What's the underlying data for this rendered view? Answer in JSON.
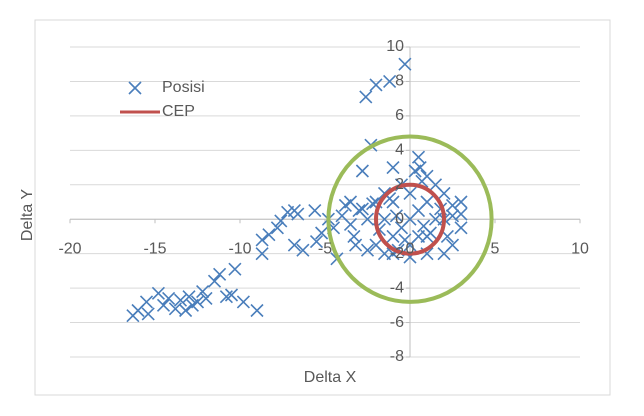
{
  "chart_data": {
    "type": "scatter",
    "xlabel": "Delta X",
    "ylabel": "Delta Y",
    "xlim": [
      -20,
      10
    ],
    "xticks": [
      -20,
      -15,
      -10,
      -5,
      0,
      5,
      10
    ],
    "ylim": [
      -8,
      10
    ],
    "yticks": [
      -8,
      -6,
      -4,
      -2,
      0,
      2,
      4,
      6,
      8,
      10
    ],
    "grid": true,
    "legend": "top-left",
    "series": [
      {
        "name": "Posisi",
        "color": "#4a7ebb",
        "x": [
          -16.3,
          -16,
          -15.5,
          -15.4,
          -14.8,
          -14.5,
          -14.2,
          -13.8,
          -13.5,
          -13.2,
          -13,
          -12.8,
          -12.5,
          -12.2,
          -12,
          -11.5,
          -11.2,
          -10.8,
          -10.5,
          -10.3,
          -9.8,
          -9,
          -8.7,
          -8.7,
          -8.3,
          -7.8,
          -7.6,
          -7.2,
          -6.8,
          -6.6,
          -6.8,
          -6.3,
          -5.6,
          -5.5,
          -5.2,
          -4.8,
          -4.5,
          -4.3,
          -4,
          -3.8,
          -3.5,
          -3.3,
          -3,
          -2.8,
          -2.6,
          -2.3,
          -2,
          -1.2,
          -0.3,
          -2.5,
          -2,
          -1.5,
          -1,
          0.5,
          0.6,
          1,
          1.5,
          2,
          2.5,
          3,
          3,
          2.5,
          2,
          1,
          0,
          -1,
          -1.5,
          -2,
          -2.5,
          0,
          0.5,
          -0.5,
          1,
          -1,
          1,
          -1,
          0,
          0,
          1.5,
          -1.5,
          2,
          -0.5,
          0.5,
          2.5,
          3,
          -3.5,
          -3.2,
          -2.8,
          -0.8,
          0.8,
          1.8,
          -1.8,
          0.3,
          -0.3,
          1.2,
          -1.2,
          2.2,
          -2.2,
          0.7,
          -0.7
        ],
        "values": [
          -5.6,
          -5.3,
          -4.8,
          -5.5,
          -4.3,
          -5,
          -4.6,
          -5.2,
          -4.7,
          -5.3,
          -4.5,
          -5,
          -4.8,
          -4.2,
          -4.6,
          -3.6,
          -3.2,
          -4.5,
          -4.4,
          -2.9,
          -4.8,
          -5.3,
          -2,
          -1.2,
          -0.9,
          -0.5,
          -0.1,
          0.4,
          0.5,
          0.3,
          -1.5,
          -1.8,
          0.5,
          -1.3,
          -0.8,
          0,
          -0.5,
          -2.3,
          0.2,
          0.8,
          -0.3,
          -1,
          0.5,
          2.8,
          7.1,
          4.3,
          7.8,
          8,
          9,
          -1.8,
          -1.5,
          -2,
          3,
          3.6,
          3,
          2.5,
          2,
          1.5,
          0.8,
          1,
          -0.5,
          -1.5,
          -2,
          -2,
          -2.2,
          -2,
          1.5,
          1,
          0,
          0,
          0.5,
          -0.5,
          1,
          1,
          -1,
          -1,
          1.5,
          -1.5,
          0,
          0,
          0,
          2,
          -1,
          0.2,
          0.3,
          1,
          -1.5,
          0.6,
          0.2,
          -0.4,
          0.6,
          -0.6,
          2.8,
          -1.2,
          -0.8,
          1.2,
          -1,
          0.9,
          2.2,
          -1.8
        ]
      }
    ],
    "circles": [
      {
        "name": "CEP",
        "color": "#c0504d",
        "center": [
          0,
          0
        ],
        "radius": 2
      },
      {
        "color": "#9bbb59",
        "center": [
          0,
          0
        ],
        "radius": 4.8
      }
    ]
  }
}
